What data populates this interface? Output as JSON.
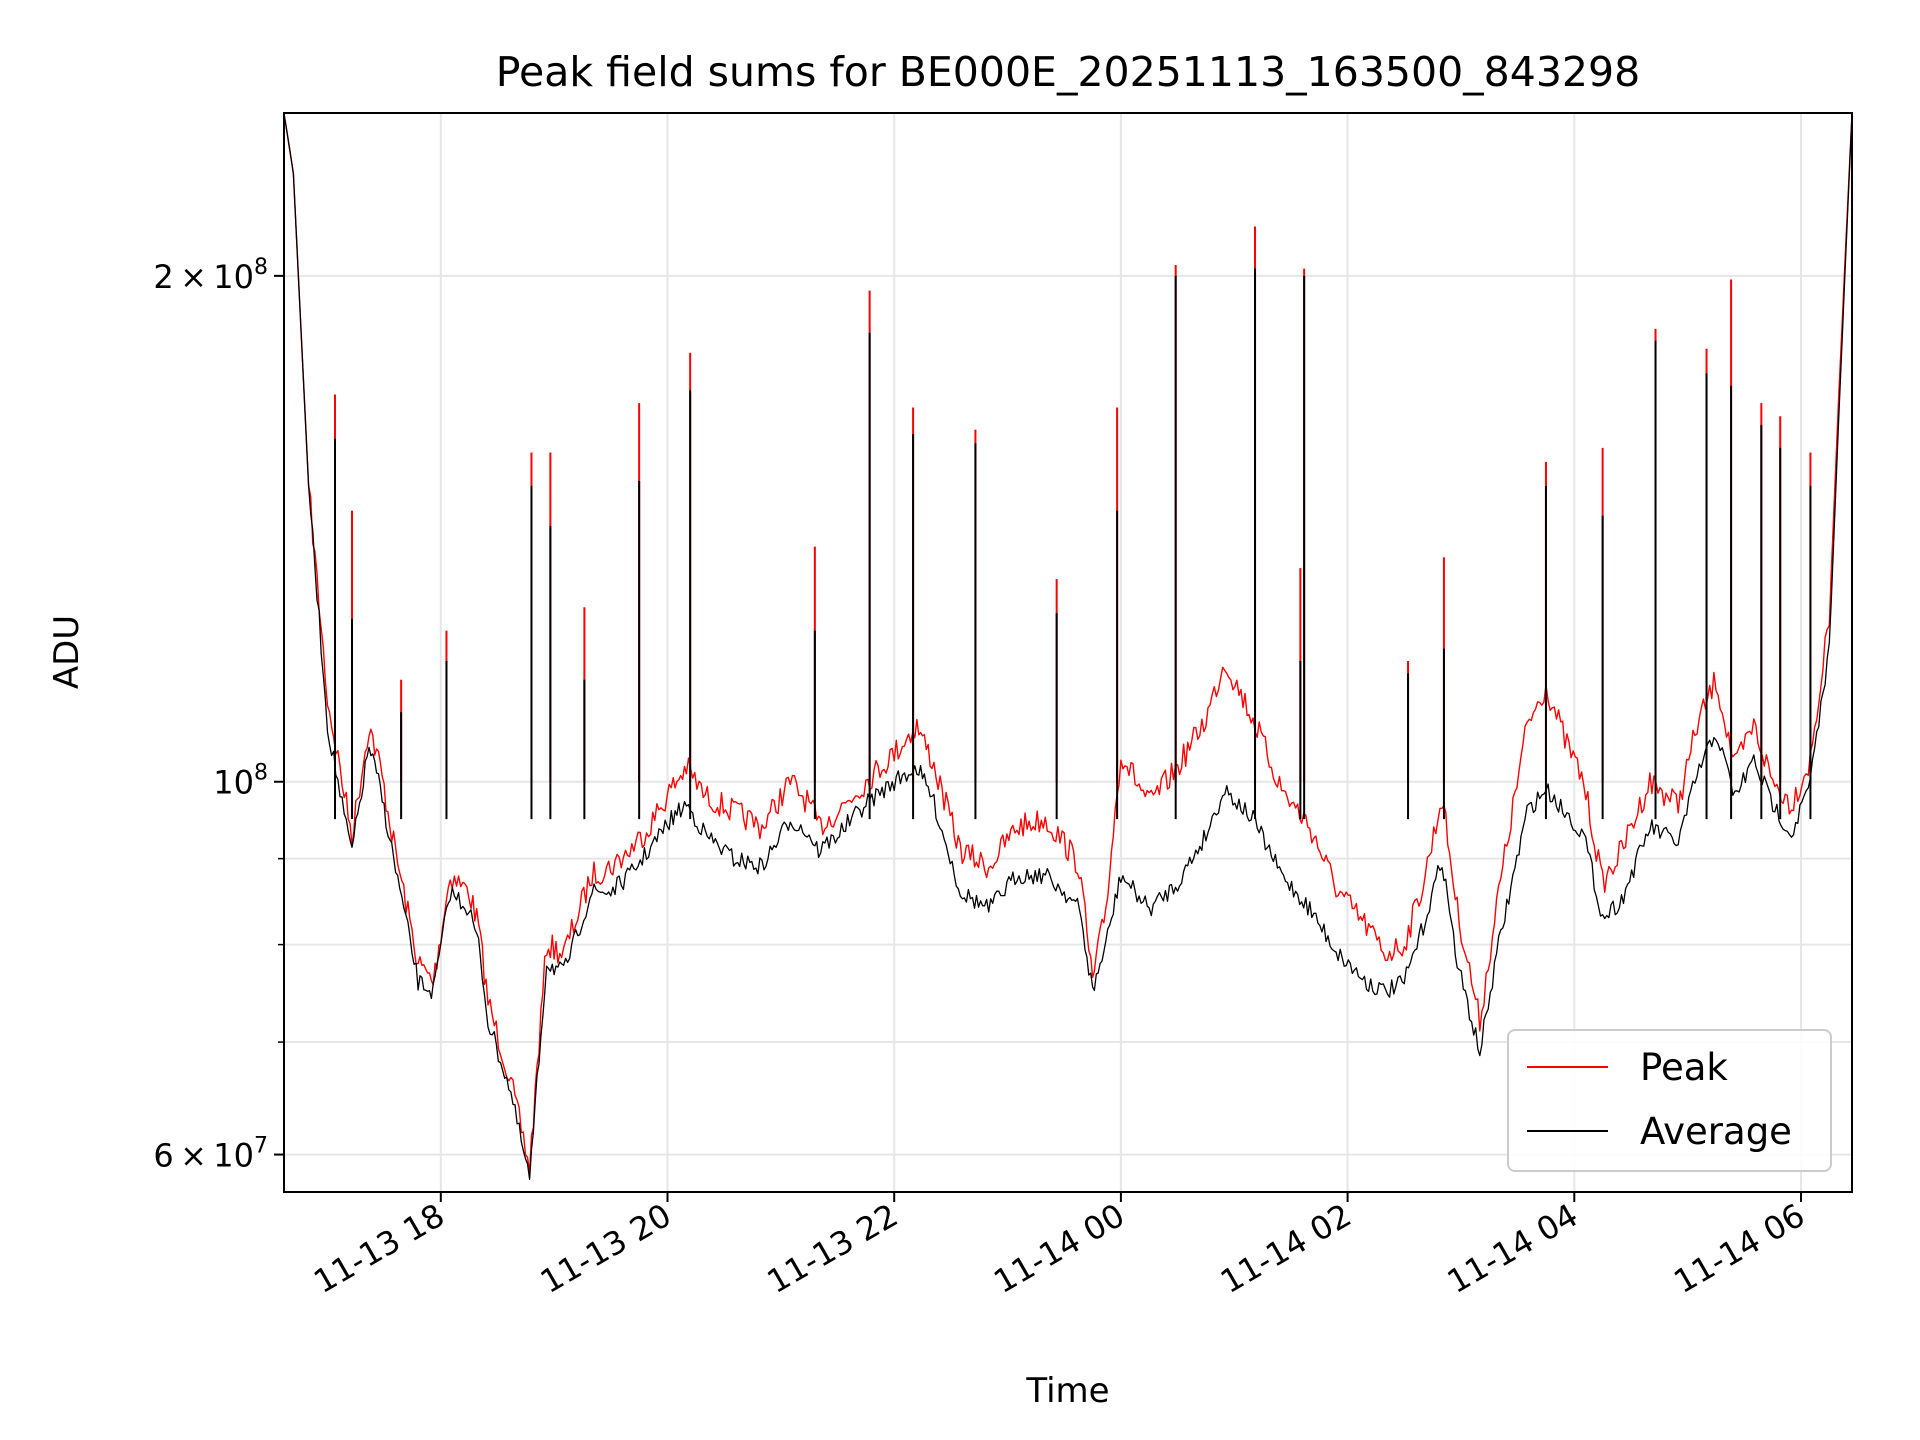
{
  "chart_data": {
    "type": "line",
    "title": "Peak field sums for BE000E_20251113_163500_843298",
    "xlabel": "Time",
    "ylabel": "ADU",
    "y_scale": "log",
    "ylim": [
      57000000,
      250000000
    ],
    "xlim": [
      "2025-11-13T16:37",
      "2025-11-14T06:27"
    ],
    "grid": true,
    "legend_position": "lower-right",
    "x_ticks": [
      {
        "value": "2025-11-13T18:00",
        "label": "11-13 18"
      },
      {
        "value": "2025-11-13T20:00",
        "label": "11-13 20"
      },
      {
        "value": "2025-11-13T22:00",
        "label": "11-13 22"
      },
      {
        "value": "2025-11-14T00:00",
        "label": "11-14 00"
      },
      {
        "value": "2025-11-14T02:00",
        "label": "11-14 02"
      },
      {
        "value": "2025-11-14T04:00",
        "label": "11-14 04"
      },
      {
        "value": "2025-11-14T06:00",
        "label": "11-14 06"
      }
    ],
    "y_ticks": [
      {
        "value": 60000000,
        "mantissa": "6",
        "exponent": "7"
      },
      {
        "value": 100000000,
        "mantissa": "",
        "exponent": "8"
      },
      {
        "value": 200000000,
        "mantissa": "2",
        "exponent": "8"
      }
    ],
    "y_minor_ticks": [
      70000000,
      80000000,
      90000000
    ],
    "series": [
      {
        "name": "Peak",
        "color": "#ff0000",
        "x": [
          "2025-11-13T16:37",
          "2025-11-13T16:42",
          "2025-11-13T16:50",
          "2025-11-13T17:00",
          "2025-11-13T17:10",
          "2025-11-13T17:13",
          "2025-11-13T17:22",
          "2025-11-13T17:28",
          "2025-11-13T17:35",
          "2025-11-13T17:48",
          "2025-11-13T17:56",
          "2025-11-13T18:05",
          "2025-11-13T18:15",
          "2025-11-13T18:20",
          "2025-11-13T18:25",
          "2025-11-13T18:36",
          "2025-11-13T18:47",
          "2025-11-13T18:56",
          "2025-11-13T19:05",
          "2025-11-13T19:20",
          "2025-11-13T19:30",
          "2025-11-13T19:40",
          "2025-11-13T19:50",
          "2025-11-13T20:02",
          "2025-11-13T20:10",
          "2025-11-13T20:20",
          "2025-11-13T20:35",
          "2025-11-13T20:50",
          "2025-11-13T21:05",
          "2025-11-13T21:15",
          "2025-11-13T21:20",
          "2025-11-13T21:30",
          "2025-11-13T21:45",
          "2025-11-13T22:00",
          "2025-11-13T22:12",
          "2025-11-13T22:20",
          "2025-11-13T22:35",
          "2025-11-13T22:50",
          "2025-11-13T23:05",
          "2025-11-13T23:20",
          "2025-11-13T23:30",
          "2025-11-13T23:38",
          "2025-11-13T23:45",
          "2025-11-13T23:52",
          "2025-11-14T00:00",
          "2025-11-14T00:15",
          "2025-11-14T00:30",
          "2025-11-14T00:45",
          "2025-11-14T00:55",
          "2025-11-14T01:10",
          "2025-11-14T01:25",
          "2025-11-14T01:40",
          "2025-11-14T01:55",
          "2025-11-14T02:10",
          "2025-11-14T02:20",
          "2025-11-14T02:30",
          "2025-11-14T02:40",
          "2025-11-14T02:50",
          "2025-11-14T02:58",
          "2025-11-14T03:10",
          "2025-11-14T03:20",
          "2025-11-14T03:35",
          "2025-11-14T03:45",
          "2025-11-14T03:55",
          "2025-11-14T04:05",
          "2025-11-14T04:15",
          "2025-11-14T04:25",
          "2025-11-14T04:40",
          "2025-11-14T04:55",
          "2025-11-14T05:05",
          "2025-11-14T05:15",
          "2025-11-14T05:25",
          "2025-11-14T05:35",
          "2025-11-14T05:45",
          "2025-11-14T05:55",
          "2025-11-14T06:05",
          "2025-11-14T06:15",
          "2025-11-14T06:20",
          "2025-11-14T06:27"
        ],
        "y": [
          250000000,
          230000000,
          150000000,
          112000000,
          97000000,
          93000000,
          108000000,
          102000000,
          92000000,
          78000000,
          76000000,
          88000000,
          86000000,
          82000000,
          74000000,
          67000000,
          59000000,
          80000000,
          79000000,
          88000000,
          89000000,
          91000000,
          94000000,
          99000000,
          102000000,
          98000000,
          96000000,
          94000000,
          100000000,
          97000000,
          94000000,
          96000000,
          100000000,
          104000000,
          108000000,
          103000000,
          91000000,
          89000000,
          94000000,
          95000000,
          92000000,
          89000000,
          76000000,
          84000000,
          104000000,
          97000000,
          102000000,
          109000000,
          118000000,
          109000000,
          99000000,
          94000000,
          86000000,
          82000000,
          79000000,
          80000000,
          87000000,
          98000000,
          84000000,
          72000000,
          86000000,
          108000000,
          114000000,
          106000000,
          100000000,
          87000000,
          91000000,
          100000000,
          97000000,
          108000000,
          115000000,
          102000000,
          108000000,
          100000000,
          97000000,
          103000000,
          125000000,
          170000000,
          250000000
        ]
      },
      {
        "name": "Average",
        "color": "#000000",
        "x": [
          "2025-11-13T16:37",
          "2025-11-13T16:42",
          "2025-11-13T16:50",
          "2025-11-13T17:00",
          "2025-11-13T17:10",
          "2025-11-13T17:13",
          "2025-11-13T17:22",
          "2025-11-13T17:28",
          "2025-11-13T17:35",
          "2025-11-13T17:48",
          "2025-11-13T17:56",
          "2025-11-13T18:05",
          "2025-11-13T18:15",
          "2025-11-13T18:20",
          "2025-11-13T18:25",
          "2025-11-13T18:36",
          "2025-11-13T18:47",
          "2025-11-13T18:56",
          "2025-11-13T19:05",
          "2025-11-13T19:20",
          "2025-11-13T19:30",
          "2025-11-13T19:40",
          "2025-11-13T19:50",
          "2025-11-13T20:02",
          "2025-11-13T20:10",
          "2025-11-13T20:20",
          "2025-11-13T20:35",
          "2025-11-13T20:50",
          "2025-11-13T21:05",
          "2025-11-13T21:15",
          "2025-11-13T21:20",
          "2025-11-13T21:30",
          "2025-11-13T21:45",
          "2025-11-13T22:00",
          "2025-11-13T22:12",
          "2025-11-13T22:20",
          "2025-11-13T22:35",
          "2025-11-13T22:50",
          "2025-11-13T23:05",
          "2025-11-13T23:20",
          "2025-11-13T23:30",
          "2025-11-13T23:38",
          "2025-11-13T23:45",
          "2025-11-13T23:52",
          "2025-11-14T00:00",
          "2025-11-14T00:15",
          "2025-11-14T00:30",
          "2025-11-14T00:45",
          "2025-11-14T00:55",
          "2025-11-14T01:10",
          "2025-11-14T01:25",
          "2025-11-14T01:40",
          "2025-11-14T01:55",
          "2025-11-14T02:10",
          "2025-11-14T02:20",
          "2025-11-14T02:30",
          "2025-11-14T02:40",
          "2025-11-14T02:50",
          "2025-11-14T02:58",
          "2025-11-14T03:10",
          "2025-11-14T03:20",
          "2025-11-14T03:35",
          "2025-11-14T03:45",
          "2025-11-14T03:55",
          "2025-11-14T04:05",
          "2025-11-14T04:15",
          "2025-11-14T04:25",
          "2025-11-14T04:40",
          "2025-11-14T04:55",
          "2025-11-14T05:05",
          "2025-11-14T05:15",
          "2025-11-14T05:25",
          "2025-11-14T05:35",
          "2025-11-14T05:45",
          "2025-11-14T05:55",
          "2025-11-14T06:05",
          "2025-11-14T06:15",
          "2025-11-14T06:20",
          "2025-11-14T06:27"
        ],
        "y": [
          250000000,
          230000000,
          150000000,
          108000000,
          94000000,
          91000000,
          105000000,
          99000000,
          90000000,
          76000000,
          75000000,
          86000000,
          84000000,
          80000000,
          72000000,
          66000000,
          58000000,
          78000000,
          77000000,
          86000000,
          86000000,
          88000000,
          91000000,
          95000000,
          97000000,
          93000000,
          90000000,
          89000000,
          95000000,
          93000000,
          91000000,
          93000000,
          97000000,
          100000000,
          102000000,
          98000000,
          86000000,
          84000000,
          88000000,
          88000000,
          86000000,
          84000000,
          75000000,
          80000000,
          88000000,
          84000000,
          87000000,
          93000000,
          99000000,
          95000000,
          88000000,
          84000000,
          79000000,
          76000000,
          75000000,
          76000000,
          82000000,
          90000000,
          78000000,
          69000000,
          80000000,
          96000000,
          99000000,
          96000000,
          93000000,
          83000000,
          85000000,
          94000000,
          92000000,
          101000000,
          107000000,
          98000000,
          103000000,
          97000000,
          93000000,
          100000000,
          120000000,
          165000000,
          250000000
        ]
      }
    ],
    "spikes": [
      {
        "time": "2025-11-13T17:04",
        "peak": 170000000,
        "avg": 160000000
      },
      {
        "time": "2025-11-13T17:13",
        "peak": 145000000,
        "avg": 125000000
      },
      {
        "time": "2025-11-13T17:39",
        "peak": 115000000,
        "avg": 110000000
      },
      {
        "time": "2025-11-13T18:03",
        "peak": 123000000,
        "avg": 118000000
      },
      {
        "time": "2025-11-13T18:48",
        "peak": 157000000,
        "avg": 150000000
      },
      {
        "time": "2025-11-13T18:58",
        "peak": 157000000,
        "avg": 142000000
      },
      {
        "time": "2025-11-13T19:16",
        "peak": 127000000,
        "avg": 115000000
      },
      {
        "time": "2025-11-13T19:45",
        "peak": 168000000,
        "avg": 151000000
      },
      {
        "time": "2025-11-13T20:12",
        "peak": 180000000,
        "avg": 171000000
      },
      {
        "time": "2025-11-13T21:18",
        "peak": 138000000,
        "avg": 123000000
      },
      {
        "time": "2025-11-13T21:47",
        "peak": 196000000,
        "avg": 185000000
      },
      {
        "time": "2025-11-13T22:10",
        "peak": 167000000,
        "avg": 161000000
      },
      {
        "time": "2025-11-13T22:43",
        "peak": 162000000,
        "avg": 159000000
      },
      {
        "time": "2025-11-13T23:26",
        "peak": 132000000,
        "avg": 126000000
      },
      {
        "time": "2025-11-13T23:58",
        "peak": 167000000,
        "avg": 145000000
      },
      {
        "time": "2025-11-14T00:29",
        "peak": 203000000,
        "avg": 200000000
      },
      {
        "time": "2025-11-14T01:11",
        "peak": 214000000,
        "avg": 202000000
      },
      {
        "time": "2025-11-14T01:35",
        "peak": 134000000,
        "avg": 118000000
      },
      {
        "time": "2025-11-14T01:37",
        "peak": 202000000,
        "avg": 200000000
      },
      {
        "time": "2025-11-14T02:32",
        "peak": 118000000,
        "avg": 116000000
      },
      {
        "time": "2025-11-14T02:51",
        "peak": 136000000,
        "avg": 120000000
      },
      {
        "time": "2025-11-14T03:45",
        "peak": 155000000,
        "avg": 150000000
      },
      {
        "time": "2025-11-14T04:15",
        "peak": 158000000,
        "avg": 144000000
      },
      {
        "time": "2025-11-14T04:43",
        "peak": 186000000,
        "avg": 183000000
      },
      {
        "time": "2025-11-14T05:10",
        "peak": 181000000,
        "avg": 175000000
      },
      {
        "time": "2025-11-14T05:23",
        "peak": 199000000,
        "avg": 172000000
      },
      {
        "time": "2025-11-14T05:39",
        "peak": 168000000,
        "avg": 163000000
      },
      {
        "time": "2025-11-14T05:49",
        "peak": 165000000,
        "avg": 158000000
      },
      {
        "time": "2025-11-14T06:05",
        "peak": 157000000,
        "avg": 150000000
      }
    ]
  }
}
